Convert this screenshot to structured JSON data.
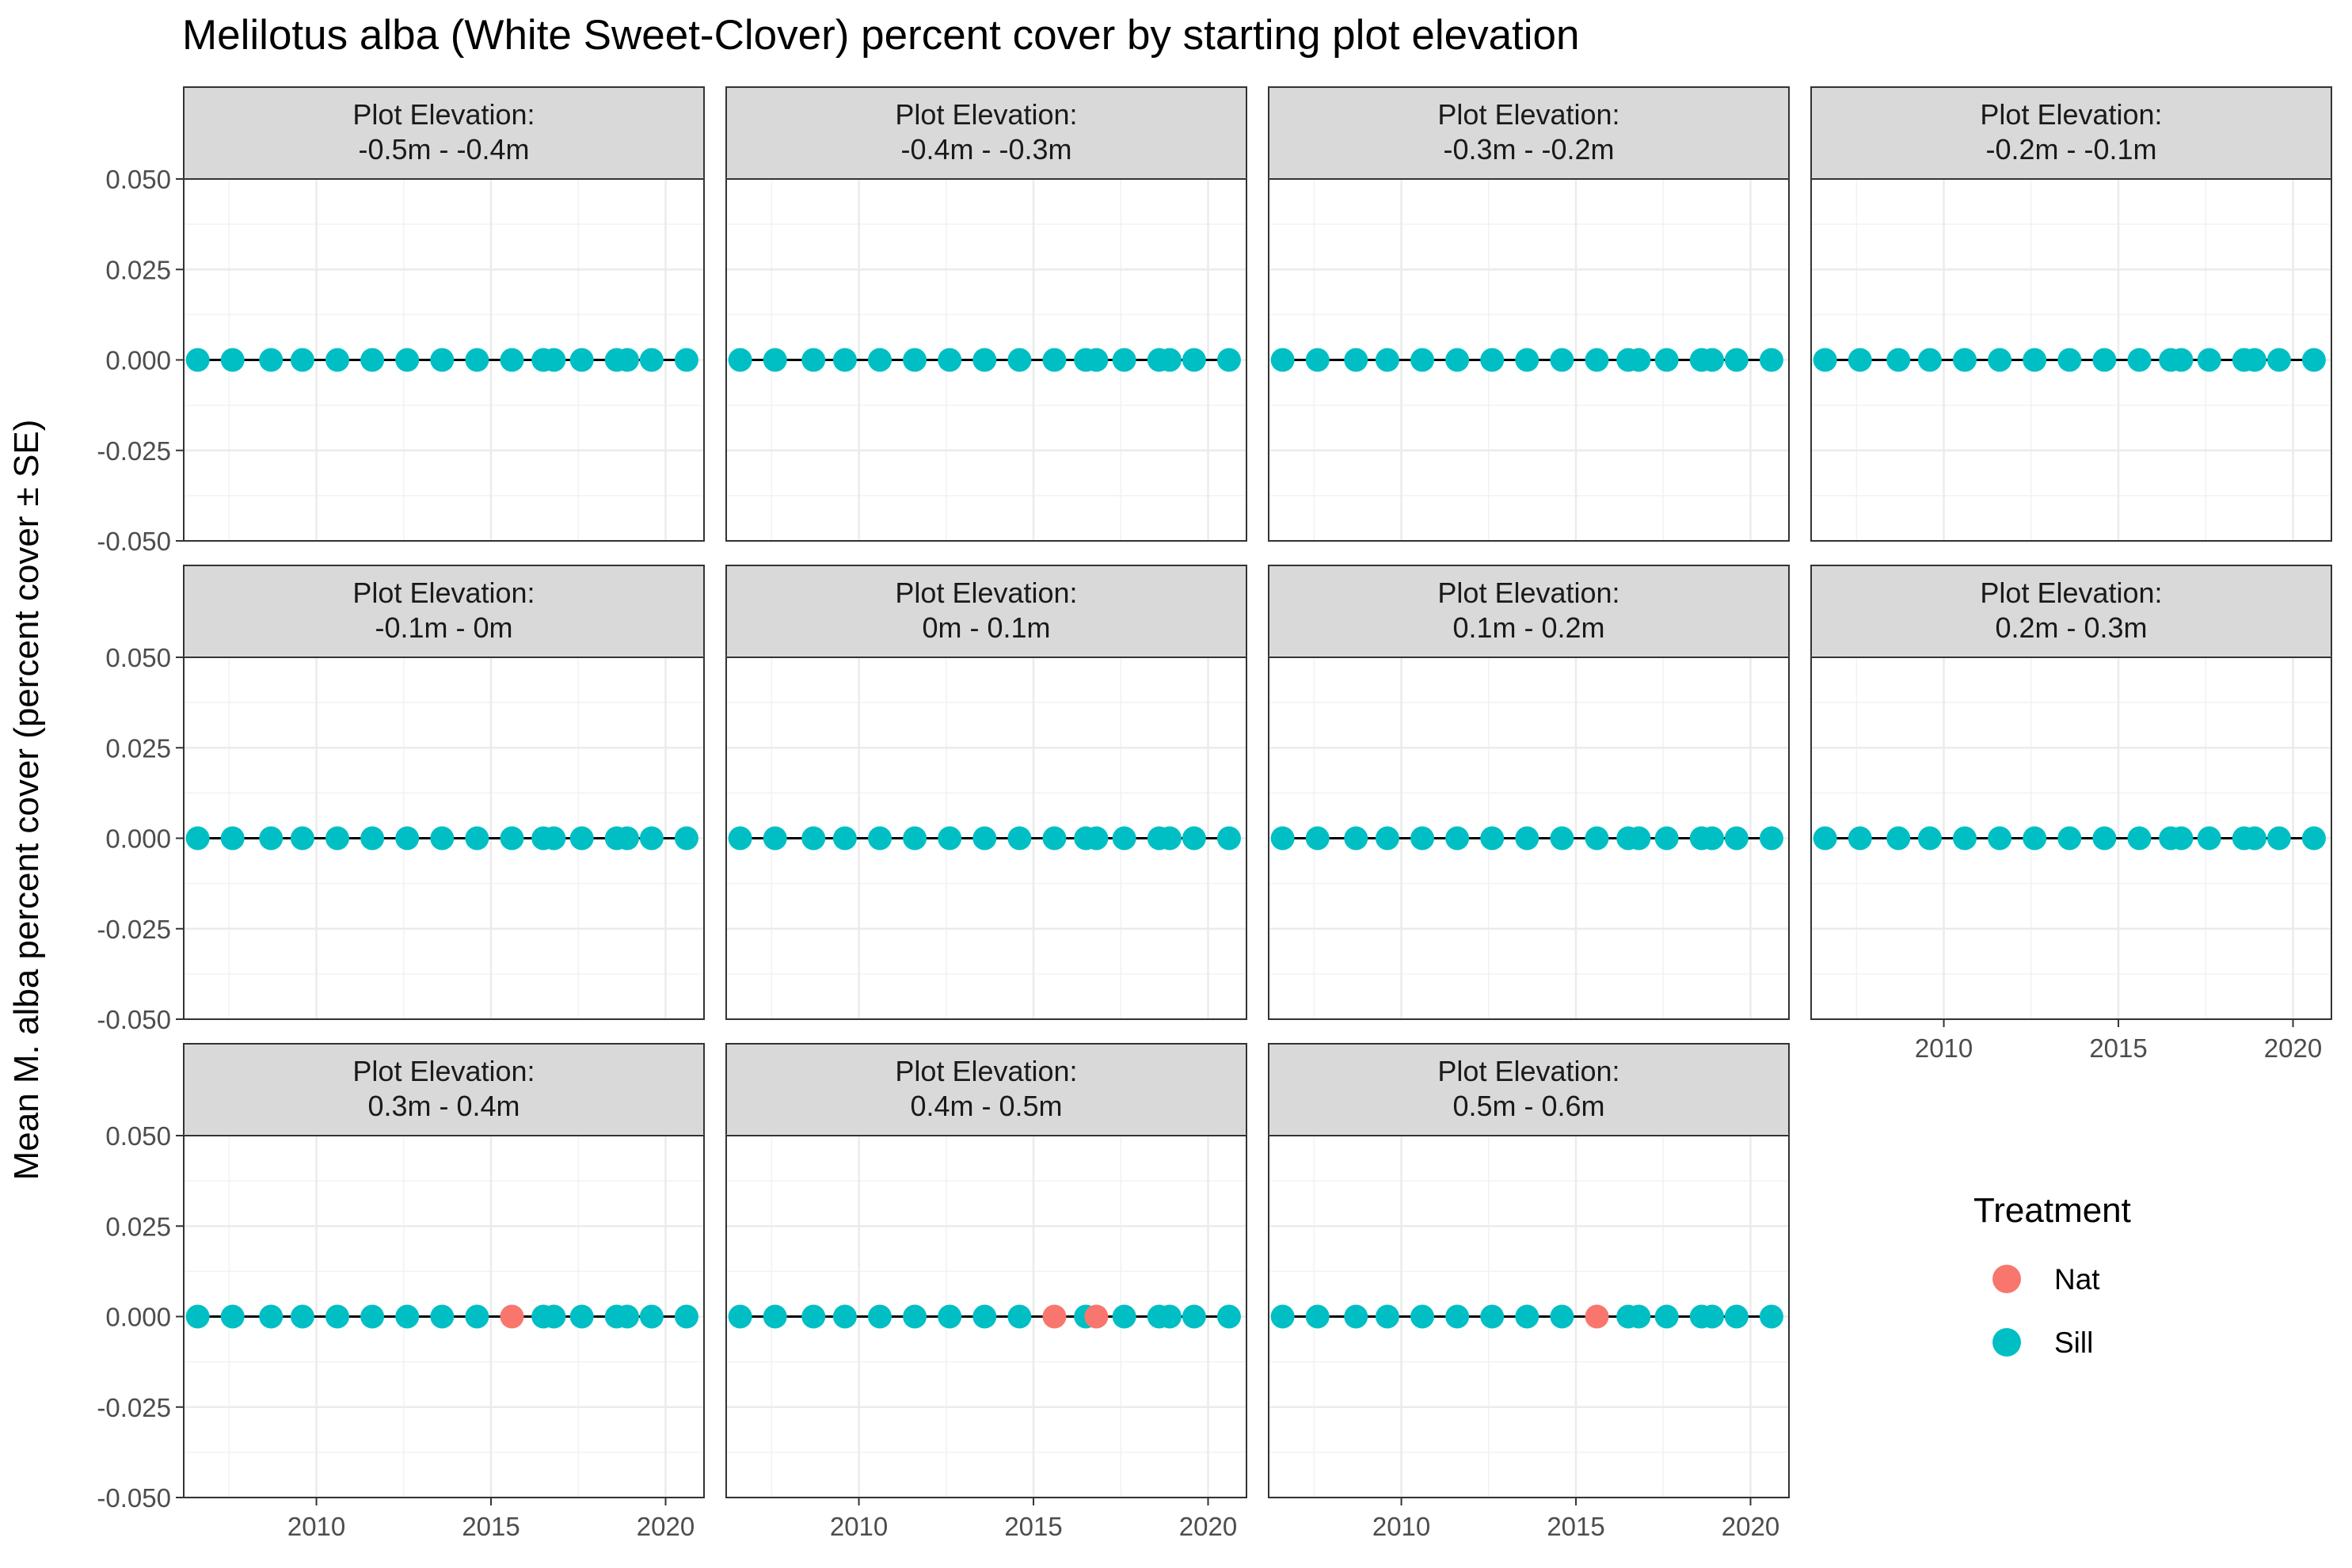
{
  "chart_data": {
    "type": "scatter",
    "title": "Melilotus alba (White Sweet-Clover) percent cover by starting plot elevation",
    "xlabel": "",
    "ylabel": "Mean M. alba percent cover (percent cover ± SE)",
    "facet_prefix": "Plot Elevation:",
    "xlim": [
      2006.2,
      2021.1
    ],
    "ylim": [
      -0.05,
      0.05
    ],
    "x_ticks": [
      2010,
      2015,
      2020
    ],
    "x_tick_labels": [
      "2010",
      "2015",
      "2020"
    ],
    "y_ticks": [
      -0.05,
      -0.025,
      0,
      0.025,
      0.05
    ],
    "y_tick_labels": [
      "-0.050",
      "-0.025",
      "0.000",
      "0.025",
      "0.050"
    ],
    "grid": true,
    "legend": {
      "title": "Treatment",
      "placement": "right",
      "entries": [
        {
          "label": "Nat",
          "color": "#F8766D"
        },
        {
          "label": "Sill",
          "color": "#00BFC4"
        }
      ]
    },
    "series_colors": {
      "Nat": "#F8766D",
      "Sill": "#00BFC4"
    },
    "facets": [
      {
        "label": "-0.5m - -0.4m",
        "sill_x": [
          2006.6,
          2007.6,
          2008.7,
          2009.6,
          2010.6,
          2011.6,
          2012.6,
          2013.6,
          2014.6,
          2015.6,
          2016.5,
          2016.8,
          2017.6,
          2018.6,
          2018.9,
          2019.6,
          2020.6
        ],
        "nat_x": []
      },
      {
        "label": "-0.4m - -0.3m",
        "sill_x": [
          2006.6,
          2007.6,
          2008.7,
          2009.6,
          2010.6,
          2011.6,
          2012.6,
          2013.6,
          2014.6,
          2015.6,
          2016.5,
          2016.8,
          2017.6,
          2018.6,
          2018.9,
          2019.6,
          2020.6
        ],
        "nat_x": []
      },
      {
        "label": "-0.3m - -0.2m",
        "sill_x": [
          2006.6,
          2007.6,
          2008.7,
          2009.6,
          2010.6,
          2011.6,
          2012.6,
          2013.6,
          2014.6,
          2015.6,
          2016.5,
          2016.8,
          2017.6,
          2018.6,
          2018.9,
          2019.6,
          2020.6
        ],
        "nat_x": []
      },
      {
        "label": "-0.2m - -0.1m",
        "sill_x": [
          2006.6,
          2007.6,
          2008.7,
          2009.6,
          2010.6,
          2011.6,
          2012.6,
          2013.6,
          2014.6,
          2015.6,
          2016.5,
          2016.8,
          2017.6,
          2018.6,
          2018.9,
          2019.6,
          2020.6
        ],
        "nat_x": []
      },
      {
        "label": "-0.1m - 0m",
        "sill_x": [
          2006.6,
          2007.6,
          2008.7,
          2009.6,
          2010.6,
          2011.6,
          2012.6,
          2013.6,
          2014.6,
          2015.6,
          2016.5,
          2016.8,
          2017.6,
          2018.6,
          2018.9,
          2019.6,
          2020.6
        ],
        "nat_x": []
      },
      {
        "label": "0m - 0.1m",
        "sill_x": [
          2006.6,
          2007.6,
          2008.7,
          2009.6,
          2010.6,
          2011.6,
          2012.6,
          2013.6,
          2014.6,
          2015.6,
          2016.5,
          2016.8,
          2017.6,
          2018.6,
          2018.9,
          2019.6,
          2020.6
        ],
        "nat_x": []
      },
      {
        "label": "0.1m - 0.2m",
        "sill_x": [
          2006.6,
          2007.6,
          2008.7,
          2009.6,
          2010.6,
          2011.6,
          2012.6,
          2013.6,
          2014.6,
          2015.6,
          2016.5,
          2016.8,
          2017.6,
          2018.6,
          2018.9,
          2019.6,
          2020.6
        ],
        "nat_x": []
      },
      {
        "label": "0.2m - 0.3m",
        "sill_x": [
          2006.6,
          2007.6,
          2008.7,
          2009.6,
          2010.6,
          2011.6,
          2012.6,
          2013.6,
          2014.6,
          2015.6,
          2016.5,
          2016.8,
          2017.6,
          2018.6,
          2018.9,
          2019.6,
          2020.6
        ],
        "nat_x": []
      },
      {
        "label": "0.3m - 0.4m",
        "sill_x": [
          2006.6,
          2007.6,
          2008.7,
          2009.6,
          2010.6,
          2011.6,
          2012.6,
          2013.6,
          2014.6,
          2016.5,
          2016.8,
          2017.6,
          2018.6,
          2018.9,
          2019.6,
          2020.6
        ],
        "nat_x": [
          2015.6
        ]
      },
      {
        "label": "0.4m - 0.5m",
        "sill_x": [
          2006.6,
          2007.6,
          2008.7,
          2009.6,
          2010.6,
          2011.6,
          2012.6,
          2013.6,
          2014.6,
          2016.5,
          2017.6,
          2018.6,
          2018.9,
          2019.6,
          2020.6
        ],
        "nat_x": [
          2015.6,
          2016.8
        ]
      },
      {
        "label": "0.5m - 0.6m",
        "sill_x": [
          2006.6,
          2007.6,
          2008.7,
          2009.6,
          2010.6,
          2011.6,
          2012.6,
          2013.6,
          2014.6,
          2016.5,
          2016.8,
          2017.6,
          2018.6,
          2018.9,
          2019.6,
          2020.6
        ],
        "nat_x": [
          2015.6
        ]
      }
    ]
  }
}
